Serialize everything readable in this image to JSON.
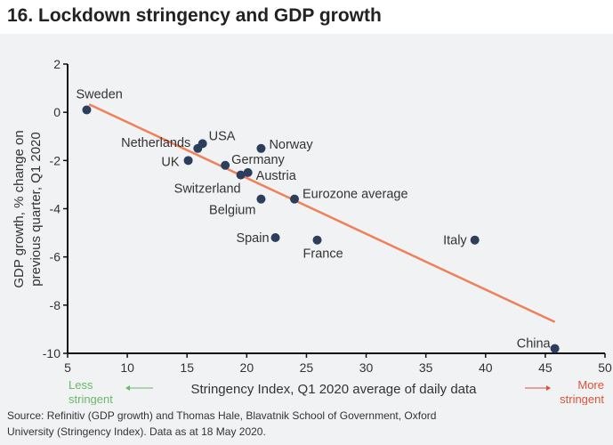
{
  "title": "16. Lockdown stringency and GDP growth",
  "source": "Source: Refinitiv (GDP growth) and Thomas Hale, Blavatnik School of Government, Oxford University (Stringency Index). Data as at 18 May 2020.",
  "chart_data": {
    "type": "scatter",
    "title": "16. Lockdown stringency and GDP growth",
    "xlabel": "Stringency Index, Q1 2020 average of daily data",
    "ylabel": "GDP growth, % change on previous quarter, Q1 2020",
    "xlim": [
      5,
      50
    ],
    "ylim": [
      -10,
      2
    ],
    "xticks": [
      5,
      10,
      15,
      20,
      25,
      30,
      35,
      40,
      45,
      50
    ],
    "yticks": [
      2,
      0,
      -2,
      -4,
      -6,
      -8,
      -10
    ],
    "grid": false,
    "annotations": {
      "less": "Less stringent",
      "more": "More stringent",
      "less_color": "#6ab86a",
      "more_color": "#d9533a"
    },
    "point_color": "#2c3e5c",
    "trend_color": "#f07f5a",
    "trendline": {
      "x": [
        6.8,
        45.8
      ],
      "y": [
        0.33,
        -8.7
      ]
    },
    "points": [
      {
        "label": "Sweden",
        "x": 6.6,
        "y": 0.1
      },
      {
        "label": "Netherlands",
        "x": 15.9,
        "y": -1.5
      },
      {
        "label": "USA",
        "x": 16.3,
        "y": -1.3
      },
      {
        "label": "UK",
        "x": 15.1,
        "y": -2.0
      },
      {
        "label": "Germany",
        "x": 18.2,
        "y": -2.2
      },
      {
        "label": "Switzerland",
        "x": 19.5,
        "y": -2.6
      },
      {
        "label": "Austria",
        "x": 20.1,
        "y": -2.5
      },
      {
        "label": "Norway",
        "x": 21.2,
        "y": -1.5
      },
      {
        "label": "Belgium",
        "x": 21.2,
        "y": -3.6
      },
      {
        "label": "Eurozone average",
        "x": 24.0,
        "y": -3.6
      },
      {
        "label": "Spain",
        "x": 22.4,
        "y": -5.2
      },
      {
        "label": "France",
        "x": 25.9,
        "y": -5.3
      },
      {
        "label": "Italy",
        "x": 39.1,
        "y": -5.3
      },
      {
        "label": "China",
        "x": 45.8,
        "y": -9.8
      }
    ]
  }
}
